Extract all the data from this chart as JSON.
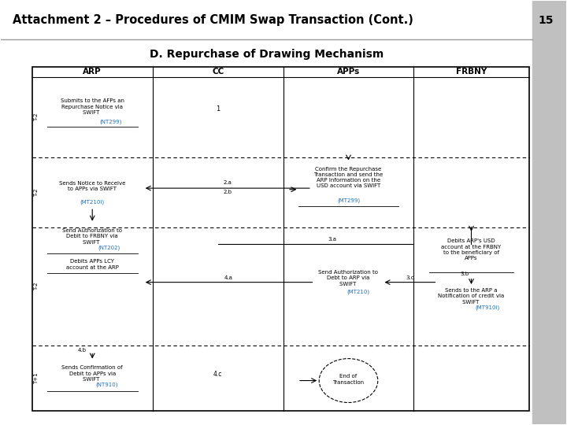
{
  "title": "Attachment 2 – Procedures of CMIM Swap Transaction (Cont.)",
  "page_number": "15",
  "subtitle": "D. Repurchase of Drawing Mechanism",
  "bg_color": "#ffffff",
  "sidebar_bg": "#c0c0c0",
  "columns": [
    "ARP",
    "CC",
    "APPs",
    "FRBNY"
  ],
  "blue_color": "#1f6eb5",
  "black_color": "#000000"
}
